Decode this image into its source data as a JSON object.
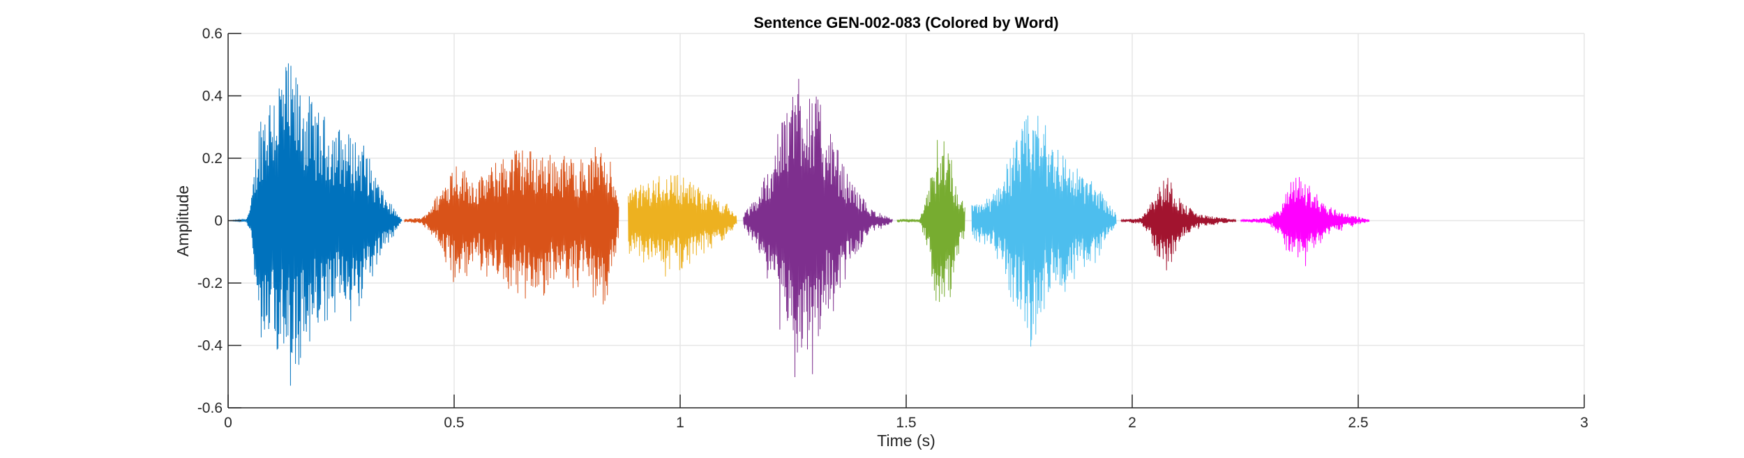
{
  "chart_data": {
    "type": "line",
    "title": "Sentence GEN-002-083 (Colored by Word)",
    "xlabel": "Time (s)",
    "ylabel": "Amplitude",
    "xlim": [
      0,
      3
    ],
    "ylim": [
      -0.6,
      0.6
    ],
    "x_ticks": [
      0,
      0.5,
      1,
      1.5,
      2,
      2.5,
      3
    ],
    "x_tick_labels": [
      "0",
      "0.5",
      "1",
      "1.5",
      "2",
      "2.5",
      "3"
    ],
    "y_ticks": [
      -0.6,
      -0.4,
      -0.2,
      0,
      0.2,
      0.4,
      0.6
    ],
    "y_tick_labels": [
      "-0.6",
      "-0.4",
      "-0.2",
      "0",
      "0.2",
      "0.4",
      "0.6"
    ],
    "grid": true,
    "series": [
      {
        "color": "#0072BD",
        "t_start": 0.0,
        "t_end": 0.385,
        "envelope": [
          [
            0.0,
            0.0
          ],
          [
            0.04,
            0.005
          ],
          [
            0.05,
            0.05
          ],
          [
            0.07,
            0.35
          ],
          [
            0.1,
            0.45
          ],
          [
            0.13,
            0.52
          ],
          [
            0.16,
            0.45
          ],
          [
            0.2,
            0.35
          ],
          [
            0.25,
            0.3
          ],
          [
            0.3,
            0.25
          ],
          [
            0.34,
            0.1
          ],
          [
            0.385,
            0.0
          ]
        ]
      },
      {
        "color": "#D95319",
        "t_start": 0.39,
        "t_end": 0.865,
        "envelope": [
          [
            0.39,
            0.005
          ],
          [
            0.43,
            0.01
          ],
          [
            0.47,
            0.1
          ],
          [
            0.5,
            0.2
          ],
          [
            0.55,
            0.13
          ],
          [
            0.6,
            0.2
          ],
          [
            0.64,
            0.24
          ],
          [
            0.7,
            0.22
          ],
          [
            0.75,
            0.21
          ],
          [
            0.8,
            0.2
          ],
          [
            0.83,
            0.3
          ],
          [
            0.865,
            0.05
          ]
        ]
      },
      {
        "color": "#EDB120",
        "t_start": 0.885,
        "t_end": 1.125,
        "envelope": [
          [
            0.885,
            0.1
          ],
          [
            0.92,
            0.12
          ],
          [
            0.97,
            0.16
          ],
          [
            1.0,
            0.15
          ],
          [
            1.05,
            0.1
          ],
          [
            1.1,
            0.06
          ],
          [
            1.125,
            0.02
          ]
        ]
      },
      {
        "color": "#7E2F8E",
        "t_start": 1.14,
        "t_end": 1.47,
        "envelope": [
          [
            1.14,
            0.02
          ],
          [
            1.17,
            0.08
          ],
          [
            1.2,
            0.2
          ],
          [
            1.23,
            0.35
          ],
          [
            1.26,
            0.5
          ],
          [
            1.29,
            0.45
          ],
          [
            1.33,
            0.3
          ],
          [
            1.37,
            0.15
          ],
          [
            1.42,
            0.04
          ],
          [
            1.47,
            0.005
          ]
        ]
      },
      {
        "color": "#77AC30",
        "t_start": 1.48,
        "t_end": 1.63,
        "envelope": [
          [
            1.48,
            0.005
          ],
          [
            1.53,
            0.005
          ],
          [
            1.55,
            0.1
          ],
          [
            1.57,
            0.28
          ],
          [
            1.59,
            0.3
          ],
          [
            1.61,
            0.12
          ],
          [
            1.63,
            0.05
          ]
        ]
      },
      {
        "color": "#4DBEEE",
        "t_start": 1.645,
        "t_end": 1.965,
        "envelope": [
          [
            1.645,
            0.05
          ],
          [
            1.69,
            0.08
          ],
          [
            1.74,
            0.25
          ],
          [
            1.78,
            0.38
          ],
          [
            1.82,
            0.28
          ],
          [
            1.87,
            0.18
          ],
          [
            1.92,
            0.12
          ],
          [
            1.965,
            0.02
          ]
        ]
      },
      {
        "color": "#A2142F",
        "t_start": 1.975,
        "t_end": 2.23,
        "envelope": [
          [
            1.975,
            0.003
          ],
          [
            2.02,
            0.01
          ],
          [
            2.05,
            0.1
          ],
          [
            2.08,
            0.15
          ],
          [
            2.11,
            0.06
          ],
          [
            2.15,
            0.02
          ],
          [
            2.23,
            0.003
          ]
        ]
      },
      {
        "color": "#FF00FF",
        "t_start": 2.24,
        "t_end": 2.525,
        "envelope": [
          [
            2.24,
            0.003
          ],
          [
            2.3,
            0.01
          ],
          [
            2.33,
            0.05
          ],
          [
            2.36,
            0.16
          ],
          [
            2.39,
            0.12
          ],
          [
            2.43,
            0.05
          ],
          [
            2.48,
            0.02
          ],
          [
            2.525,
            0.003
          ]
        ]
      }
    ]
  }
}
